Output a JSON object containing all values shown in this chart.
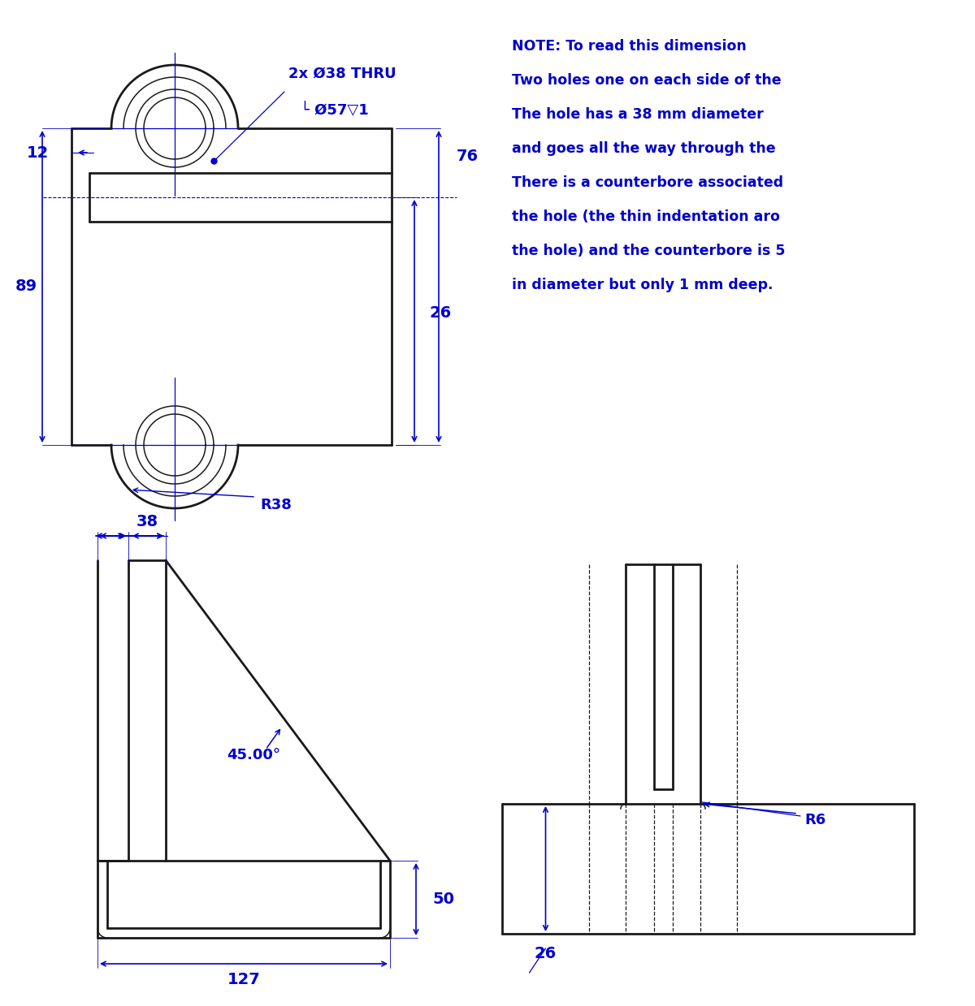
{
  "bg_color": "white",
  "line_color": "#1a1a1a",
  "dim_color": "#0000cc",
  "line_width": 2.0,
  "thin_line": 1.1,
  "dash_line": 0.9,
  "note_text": [
    "NOTE: To read this dimension",
    "Two holes one on each side of the",
    "The hole has a 38 mm diameter",
    "and goes all the way through the",
    "There is a counterbore associated",
    "the hole (the thin indentation aro",
    "the hole) and the counterbore is 5",
    "in diameter but only 1 mm deep."
  ],
  "callout_line1": "2x Ø38 THRU",
  "callout_line2": "└ Ø57▽1",
  "dim_12": "12",
  "dim_89": "89",
  "dim_26": "26",
  "dim_76": "76",
  "dim_R38": "R38",
  "dim_38": "38",
  "dim_127": "127",
  "dim_50": "50",
  "dim_45": "45.00°",
  "dim_26b": "26",
  "dim_R6": "R6"
}
